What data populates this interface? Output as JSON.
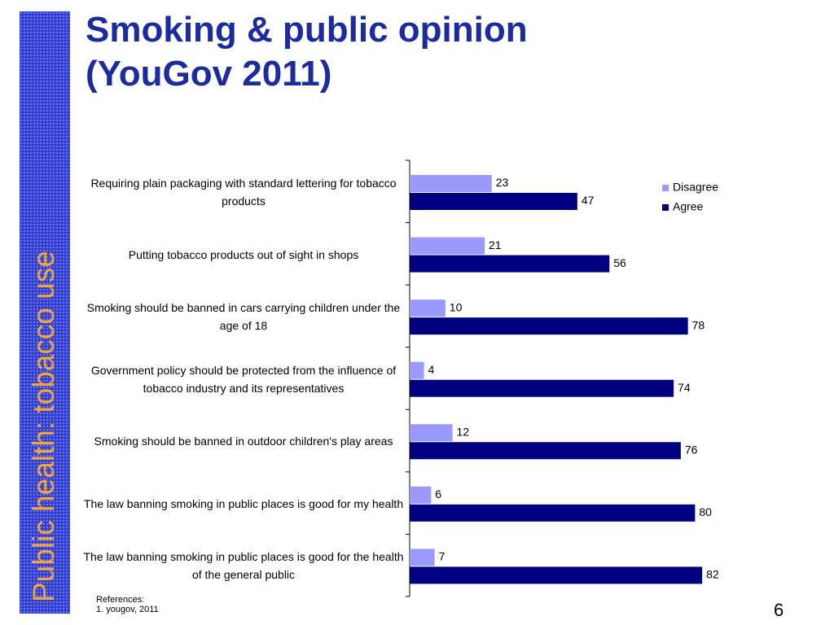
{
  "sidebar": "Public health: tobacco use",
  "references": {
    "heading": "References:",
    "items": [
      "1. yougov, 2011"
    ]
  },
  "page_number": "6",
  "chart_data": {
    "type": "bar",
    "orientation": "horizontal",
    "title": "Smoking & public opinion (YouGov 2011)",
    "categories": [
      "Requiring plain packaging with standard lettering for tobacco products",
      "Putting tobacco products out of sight in shops",
      "Smoking should be banned in cars carrying children under the age of 18",
      "Government policy should be protected from the influence of tobacco industry and its representatives",
      "Smoking should be banned in outdoor children's play areas",
      "The law banning smoking in public places is good for my health",
      "The law banning smoking in public places is good for the health of the general public"
    ],
    "series": [
      {
        "name": "Disagree",
        "color": "#9999ff",
        "values": [
          23,
          21,
          10,
          4,
          12,
          6,
          7
        ]
      },
      {
        "name": "Agree",
        "color": "#000080",
        "values": [
          47,
          56,
          78,
          74,
          76,
          80,
          82
        ]
      }
    ],
    "legend": "top-right"
  }
}
